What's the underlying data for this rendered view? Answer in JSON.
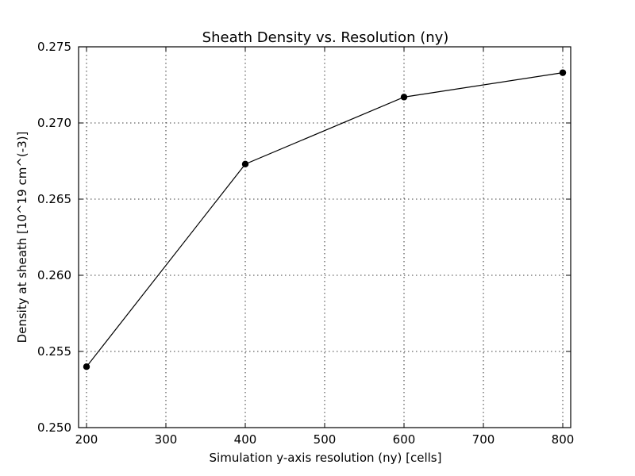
{
  "chart_data": {
    "type": "line",
    "title": "Sheath Density vs. Resolution (ny)",
    "xlabel": "Simulation y-axis resolution (ny) [cells]",
    "ylabel": "Density at sheath [10^19 cm^(-3)]",
    "xlim": [
      190,
      810
    ],
    "ylim": [
      0.25,
      0.275
    ],
    "xticks": [
      200,
      300,
      400,
      500,
      600,
      700,
      800
    ],
    "xtick_labels": [
      "200",
      "300",
      "400",
      "500",
      "600",
      "700",
      "800"
    ],
    "yticks": [
      0.25,
      0.255,
      0.26,
      0.265,
      0.27,
      0.275
    ],
    "ytick_labels": [
      "0.250",
      "0.255",
      "0.260",
      "0.265",
      "0.270",
      "0.275"
    ],
    "grid": true,
    "series": [
      {
        "color": "#000000",
        "marker": "circle",
        "x": [
          200,
          400,
          600,
          800
        ],
        "y": [
          0.254,
          0.2673,
          0.2717,
          0.2733
        ]
      }
    ]
  }
}
